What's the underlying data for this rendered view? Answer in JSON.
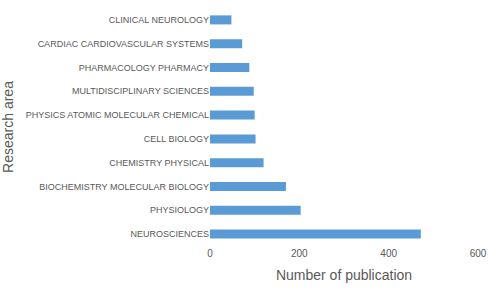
{
  "chart_data": {
    "type": "bar",
    "orientation": "horizontal",
    "x_label": "Number of publication",
    "y_label": "Research area",
    "categories": [
      "NEUROSCIENCES",
      "PHYSIOLOGY",
      "BIOCHEMISTRY MOLECULAR BIOLOGY",
      "CHEMISTRY PHYSICAL",
      "CELL BIOLOGY",
      "PHYSICS ATOMIC MOLECULAR CHEMICAL",
      "MULTIDISCIPLINARY SCIENCES",
      "PHARMACOLOGY PHARMACY",
      "CARDIAC CARDIOVASCULAR SYSTEMS",
      "CLINICAL NEUROLOGY"
    ],
    "values": [
      472,
      203,
      170,
      120,
      102,
      100,
      98,
      88,
      72,
      48
    ],
    "color": "#5b9bd5",
    "xlim": [
      0,
      600
    ],
    "xticks": [
      0,
      200,
      400,
      600
    ],
    "grid": false
  }
}
